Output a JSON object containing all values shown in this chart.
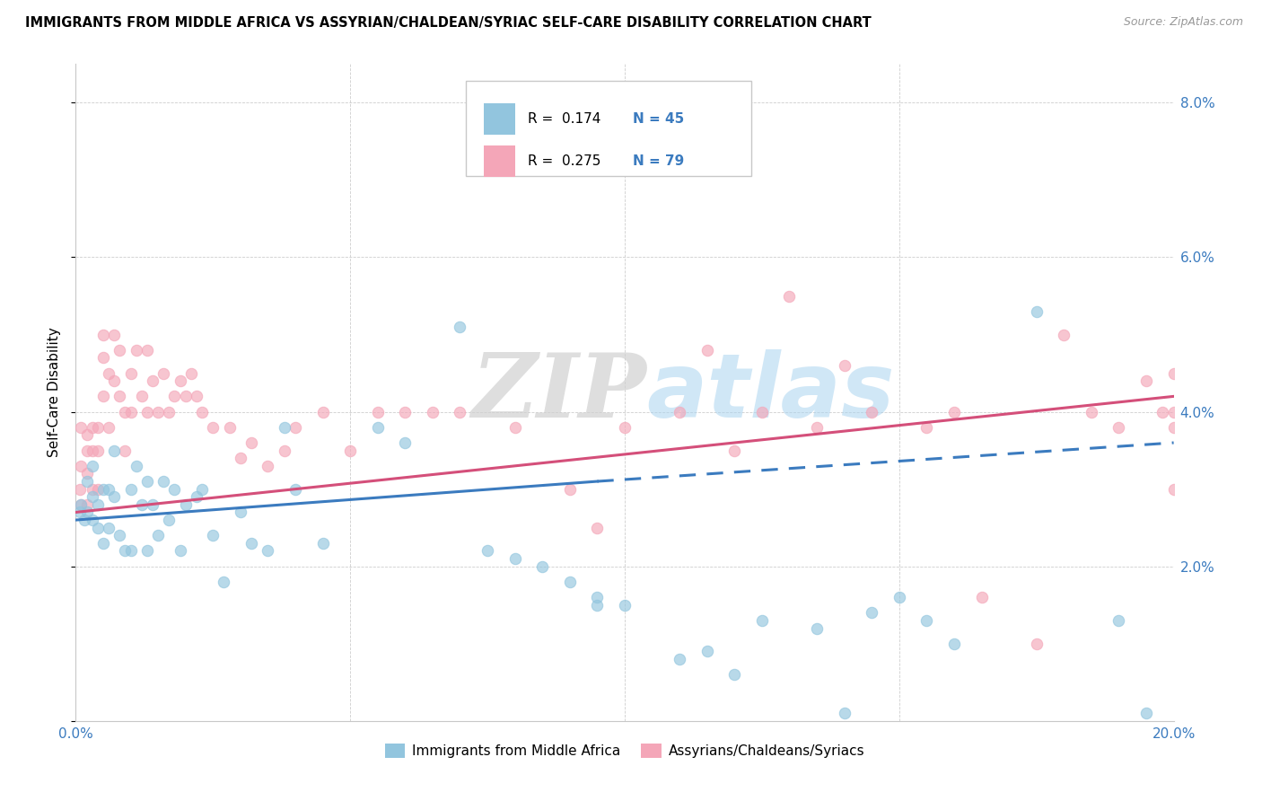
{
  "title": "IMMIGRANTS FROM MIDDLE AFRICA VS ASSYRIAN/CHALDEAN/SYRIAC SELF-CARE DISABILITY CORRELATION CHART",
  "source": "Source: ZipAtlas.com",
  "ylabel": "Self-Care Disability",
  "xlim": [
    0.0,
    0.2
  ],
  "ylim": [
    0.0,
    0.085
  ],
  "yticks": [
    0.0,
    0.02,
    0.04,
    0.06,
    0.08
  ],
  "xticks": [
    0.0,
    0.05,
    0.1,
    0.15,
    0.2
  ],
  "xtick_labels": [
    "0.0%",
    "",
    "",
    "",
    "20.0%"
  ],
  "legend_label1": "Immigrants from Middle Africa",
  "legend_label2": "Assyrians/Chaldeans/Syriacs",
  "R1": 0.174,
  "N1": 45,
  "R2": 0.275,
  "N2": 79,
  "color_blue": "#92c5de",
  "color_pink": "#f4a6b8",
  "line_color_blue": "#3b7bbf",
  "line_color_pink": "#d44f7a",
  "watermark_zip": "ZIP",
  "watermark_atlas": "atlas",
  "blue_x": [
    0.0008,
    0.001,
    0.0015,
    0.002,
    0.002,
    0.003,
    0.003,
    0.003,
    0.004,
    0.004,
    0.005,
    0.005,
    0.006,
    0.006,
    0.007,
    0.007,
    0.008,
    0.009,
    0.01,
    0.01,
    0.011,
    0.012,
    0.013,
    0.013,
    0.014,
    0.015,
    0.016,
    0.017,
    0.018,
    0.019,
    0.02,
    0.022,
    0.023,
    0.025,
    0.027,
    0.03,
    0.032,
    0.035,
    0.038,
    0.04,
    0.045,
    0.055,
    0.06,
    0.08,
    0.095
  ],
  "blue_y": [
    0.027,
    0.028,
    0.026,
    0.031,
    0.027,
    0.033,
    0.029,
    0.026,
    0.028,
    0.025,
    0.03,
    0.023,
    0.03,
    0.025,
    0.035,
    0.029,
    0.024,
    0.022,
    0.03,
    0.022,
    0.033,
    0.028,
    0.031,
    0.022,
    0.028,
    0.024,
    0.031,
    0.026,
    0.03,
    0.022,
    0.028,
    0.029,
    0.03,
    0.024,
    0.018,
    0.027,
    0.023,
    0.022,
    0.038,
    0.03,
    0.023,
    0.038,
    0.036,
    0.021,
    0.015
  ],
  "blue_x2": [
    0.07,
    0.075,
    0.085,
    0.09,
    0.095,
    0.1,
    0.11,
    0.115,
    0.12,
    0.125,
    0.135,
    0.14,
    0.145,
    0.15,
    0.155,
    0.16,
    0.175,
    0.19,
    0.195
  ],
  "blue_y2": [
    0.051,
    0.022,
    0.02,
    0.018,
    0.016,
    0.015,
    0.008,
    0.009,
    0.006,
    0.013,
    0.012,
    0.001,
    0.014,
    0.016,
    0.013,
    0.01,
    0.053,
    0.013,
    0.001
  ],
  "pink_x": [
    0.0008,
    0.001,
    0.001,
    0.001,
    0.002,
    0.002,
    0.002,
    0.002,
    0.003,
    0.003,
    0.003,
    0.004,
    0.004,
    0.004,
    0.005,
    0.005,
    0.005,
    0.006,
    0.006,
    0.007,
    0.007,
    0.008,
    0.008,
    0.009,
    0.009,
    0.01,
    0.01,
    0.011,
    0.012,
    0.013,
    0.013,
    0.014,
    0.015,
    0.016,
    0.017,
    0.018,
    0.019,
    0.02,
    0.021,
    0.022,
    0.023,
    0.025,
    0.028,
    0.03,
    0.032,
    0.035,
    0.038,
    0.04,
    0.045,
    0.05,
    0.055,
    0.06,
    0.065,
    0.07,
    0.08,
    0.09,
    0.095,
    0.1,
    0.11,
    0.115,
    0.12,
    0.125,
    0.13,
    0.135,
    0.14,
    0.145,
    0.155,
    0.16,
    0.165,
    0.175,
    0.18,
    0.185,
    0.19,
    0.195,
    0.198,
    0.2,
    0.2,
    0.2,
    0.2
  ],
  "pink_y": [
    0.03,
    0.038,
    0.033,
    0.028,
    0.037,
    0.035,
    0.032,
    0.028,
    0.038,
    0.035,
    0.03,
    0.038,
    0.035,
    0.03,
    0.05,
    0.047,
    0.042,
    0.045,
    0.038,
    0.05,
    0.044,
    0.048,
    0.042,
    0.04,
    0.035,
    0.045,
    0.04,
    0.048,
    0.042,
    0.048,
    0.04,
    0.044,
    0.04,
    0.045,
    0.04,
    0.042,
    0.044,
    0.042,
    0.045,
    0.042,
    0.04,
    0.038,
    0.038,
    0.034,
    0.036,
    0.033,
    0.035,
    0.038,
    0.04,
    0.035,
    0.04,
    0.04,
    0.04,
    0.04,
    0.038,
    0.03,
    0.025,
    0.038,
    0.04,
    0.048,
    0.035,
    0.04,
    0.055,
    0.038,
    0.046,
    0.04,
    0.038,
    0.04,
    0.016,
    0.01,
    0.05,
    0.04,
    0.038,
    0.044,
    0.04,
    0.04,
    0.038,
    0.03,
    0.045
  ],
  "blue_line_x_start": 0.0,
  "blue_line_x_solid_end": 0.095,
  "blue_line_x_dashed_end": 0.2,
  "blue_line_y_start": 0.026,
  "blue_line_y_at_solid_end": 0.031,
  "blue_line_y_end": 0.036,
  "pink_line_x_start": 0.0,
  "pink_line_x_end": 0.2,
  "pink_line_y_start": 0.027,
  "pink_line_y_end": 0.042
}
